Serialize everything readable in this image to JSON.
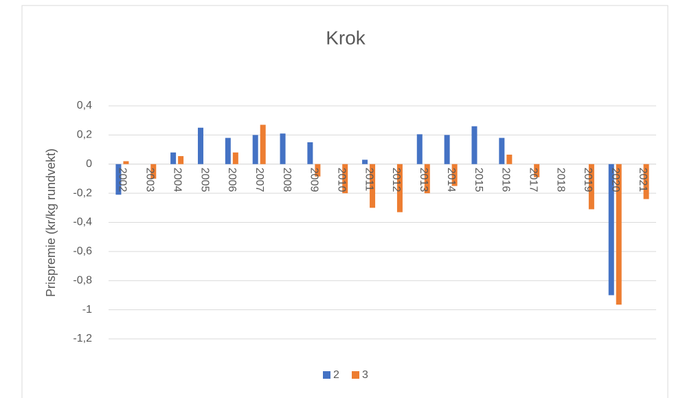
{
  "chart_data": {
    "type": "bar",
    "title": "Krok",
    "y_label": "Prispremie (kr/kg rundvekt)",
    "categories": [
      "2002",
      "2003",
      "2004",
      "2005",
      "2006",
      "2007",
      "2008",
      "2009",
      "2010",
      "2011",
      "2012",
      "2013",
      "2014",
      "2015",
      "2016",
      "2017",
      "2018",
      "2019",
      "2020",
      "2021"
    ],
    "series": [
      {
        "name": "2",
        "color": "#4472c4",
        "values": [
          -0.21,
          0,
          0.08,
          0.25,
          0.18,
          0.2,
          0.21,
          0.15,
          0,
          0.03,
          0,
          0.205,
          0.2,
          0.26,
          0.18,
          0,
          0,
          0,
          -0.9,
          0
        ]
      },
      {
        "name": "3",
        "color": "#ed7d31",
        "values": [
          0.02,
          -0.1,
          0.055,
          0,
          0.08,
          0.27,
          0,
          -0.085,
          -0.2,
          -0.3,
          -0.33,
          -0.2,
          -0.15,
          0,
          0.065,
          -0.09,
          0,
          -0.31,
          -0.965,
          -0.24
        ]
      }
    ],
    "ylim": [
      -1.2,
      0.4
    ],
    "yticks": [
      {
        "value": -1.2,
        "label": "-1,2"
      },
      -1,
      {
        "value": -0.8,
        "label": "-0,8"
      },
      {
        "value": -0.6,
        "label": "-0,6"
      },
      {
        "value": -0.4,
        "label": "-0,4"
      },
      {
        "value": -0.2,
        "label": "-0,2"
      },
      0,
      {
        "value": 0.2,
        "label": "0,2"
      },
      {
        "value": 0.4,
        "label": "0,4"
      }
    ],
    "grid": true,
    "legend": "bottom"
  }
}
